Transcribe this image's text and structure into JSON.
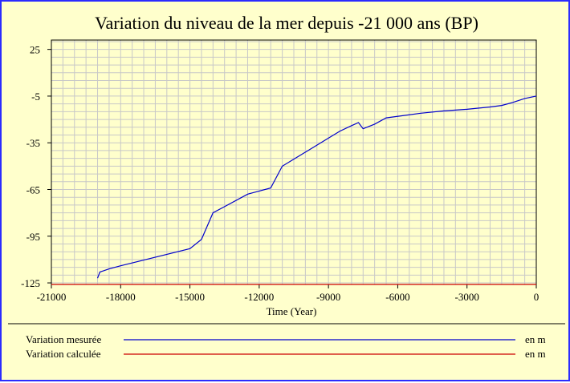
{
  "chart_data": {
    "type": "line",
    "title": "Variation du niveau de la mer depuis -21 000 ans (BP)",
    "xlabel": "Time (Year)",
    "ylabel": "",
    "xlim": [
      -21000,
      0
    ],
    "ylim": [
      -126,
      31
    ],
    "grid": true,
    "x_ticks": [
      -21000,
      -18000,
      -15000,
      -12000,
      -9000,
      -6000,
      -3000,
      0
    ],
    "x_tick_labels": [
      "-21000",
      "-18000",
      "-15000",
      "-12000",
      "-9000",
      "-6000",
      "-3000",
      "0"
    ],
    "y_ticks": [
      25,
      -5,
      -35,
      -65,
      -95,
      -125
    ],
    "y_tick_labels": [
      "25",
      "-5",
      "-35",
      "-65",
      "-95",
      "-125"
    ],
    "series": [
      {
        "name": "Variation mesurée",
        "unit": "en m",
        "color": "#0000cc",
        "x": [
          -19000,
          -18900,
          -18500,
          -18000,
          -15000,
          -14500,
          -14000,
          -13500,
          -12500,
          -12000,
          -11500,
          -11000,
          -10500,
          -10000,
          -9000,
          -8500,
          -8000,
          -7700,
          -7500,
          -7000,
          -6500,
          -5000,
          -4000,
          -3000,
          -2000,
          -1500,
          -1000,
          -500,
          0
        ],
        "y": [
          -122,
          -118,
          -116,
          -114,
          -103,
          -97,
          -80,
          -76,
          -68,
          -66,
          -64,
          -50,
          -45.5,
          -41,
          -32,
          -27.5,
          -24,
          -22,
          -26,
          -23,
          -19,
          -16,
          -14.5,
          -13.5,
          -12,
          -11,
          -9,
          -6.5,
          -5
        ]
      },
      {
        "name": "Variation calculée",
        "unit": "en m",
        "color": "#cc0000",
        "x": [
          -21000,
          0
        ],
        "y": [
          -126,
          -126
        ]
      }
    ]
  }
}
